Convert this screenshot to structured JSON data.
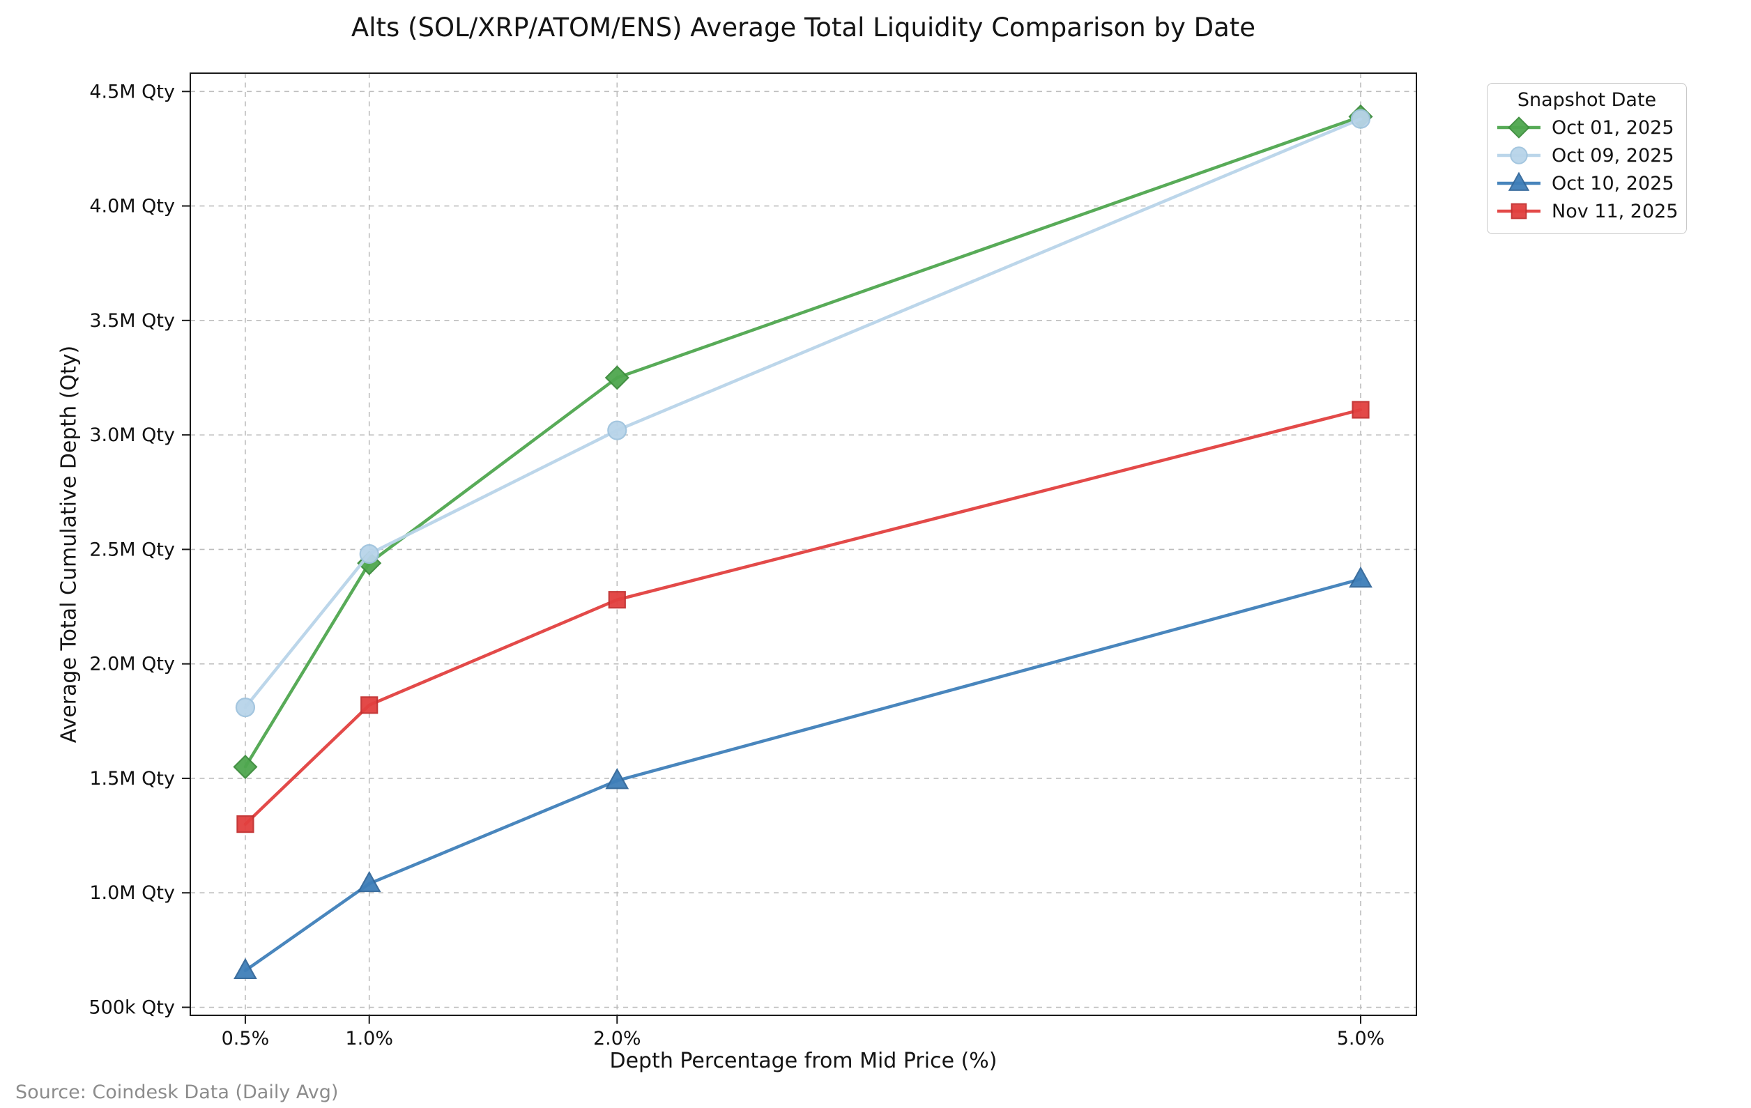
{
  "title": "Alts (SOL/XRP/ATOM/ENS) Average Total Liquidity Comparison by Date",
  "source_note": "Source: Coindesk Data (Daily Avg)",
  "legend": {
    "title": "Snapshot Date",
    "position": "top-right outside plot"
  },
  "chart_data": {
    "type": "line",
    "title": "Alts (SOL/XRP/ATOM/ENS) Average Total Liquidity Comparison by Date",
    "xlabel": "Depth Percentage from Mid Price (%)",
    "ylabel": "Average Total Cumulative Depth (Qty)",
    "unit": "millions of Qty",
    "grid": true,
    "x": [
      0.5,
      1.0,
      2.0,
      5.0
    ],
    "x_ticks": [
      {
        "value": 0.5,
        "label": "0.5%"
      },
      {
        "value": 1.0,
        "label": "1.0%"
      },
      {
        "value": 2.0,
        "label": "2.0%"
      },
      {
        "value": 5.0,
        "label": "5.0%"
      }
    ],
    "y_ticks": [
      {
        "value": 0.5,
        "label": "500k Qty"
      },
      {
        "value": 1.0,
        "label": "1.0M Qty"
      },
      {
        "value": 1.5,
        "label": "1.5M Qty"
      },
      {
        "value": 2.0,
        "label": "2.0M Qty"
      },
      {
        "value": 2.5,
        "label": "2.5M Qty"
      },
      {
        "value": 3.0,
        "label": "3.0M Qty"
      },
      {
        "value": 3.5,
        "label": "3.5M Qty"
      },
      {
        "value": 4.0,
        "label": "4.0M Qty"
      },
      {
        "value": 4.5,
        "label": "4.5M Qty"
      }
    ],
    "xlim": [
      0.278,
      5.225
    ],
    "ylim": [
      0.465,
      4.58
    ],
    "series": [
      {
        "name": "Oct 01, 2025",
        "marker": "diamond",
        "color": "#4fa74f",
        "edge": "#3c8c3c",
        "values": [
          1.55,
          2.44,
          3.25,
          4.39
        ]
      },
      {
        "name": "Oct 09, 2025",
        "marker": "circle",
        "color": "#b8d4e9",
        "edge": "#a0c4de",
        "values": [
          1.81,
          2.48,
          3.02,
          4.38
        ]
      },
      {
        "name": "Oct 10, 2025",
        "marker": "triangle",
        "color": "#3f7fb9",
        "edge": "#33689a",
        "values": [
          0.66,
          1.04,
          1.49,
          2.37
        ]
      },
      {
        "name": "Nov 11, 2025",
        "marker": "square",
        "color": "#e2403f",
        "edge": "#c23030",
        "values": [
          1.3,
          1.82,
          2.28,
          3.11
        ]
      }
    ]
  }
}
